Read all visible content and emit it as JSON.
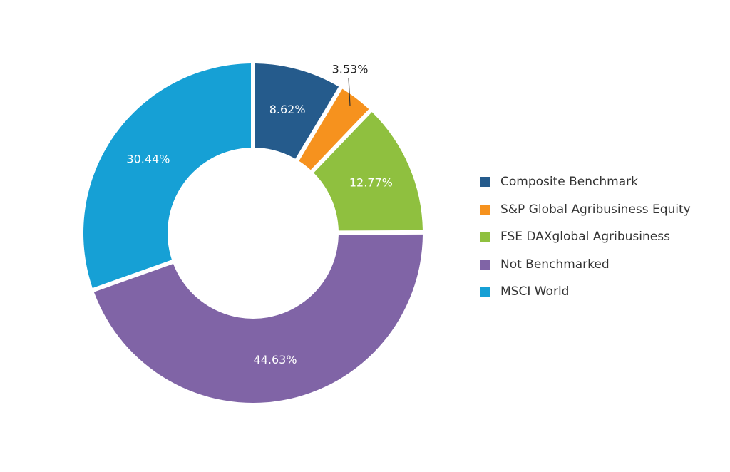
{
  "chart_data": {
    "type": "pie",
    "variant": "donut",
    "title": "",
    "slices": [
      {
        "name": "Composite Benchmark",
        "value": 8.62,
        "label": "8.62%",
        "color": "#255b8c",
        "label_position": "inside"
      },
      {
        "name": "S&P Global Agribusiness Equity",
        "value": 3.53,
        "label": "3.53%",
        "color": "#f6921e",
        "label_position": "outside"
      },
      {
        "name": "FSE DAXglobal Agribusiness",
        "value": 12.77,
        "label": "12.77%",
        "color": "#8fc03f",
        "label_position": "inside"
      },
      {
        "name": "Not Benchmarked",
        "value": 44.63,
        "label": "44.63%",
        "color": "#8064a6",
        "label_position": "inside"
      },
      {
        "name": "MSCI World",
        "value": 30.44,
        "label": "30.44%",
        "color": "#16a0d5",
        "label_position": "inside"
      }
    ],
    "legend_position": "right"
  }
}
